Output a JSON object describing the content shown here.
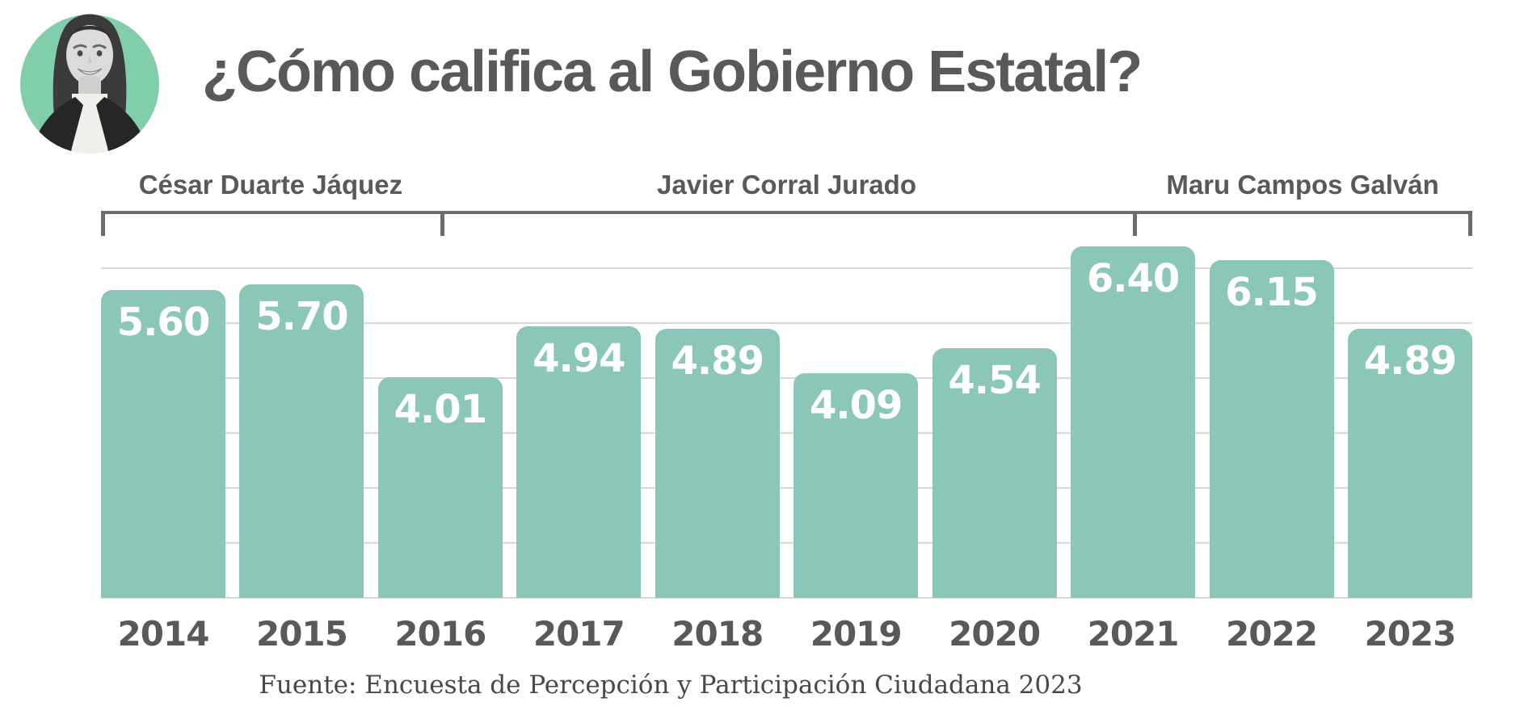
{
  "header": {
    "title": "¿Cómo califica al Gobierno Estatal?",
    "avatar": "woman-portrait-in-teal-circle"
  },
  "chart_data": {
    "type": "bar",
    "title": "¿Cómo califica al Gobierno Estatal?",
    "categories": [
      "2014",
      "2015",
      "2016",
      "2017",
      "2018",
      "2019",
      "2020",
      "2021",
      "2022",
      "2023"
    ],
    "values": [
      5.6,
      5.7,
      4.01,
      4.94,
      4.89,
      4.09,
      4.54,
      6.4,
      6.15,
      4.89
    ],
    "value_label_format": "2-decimals",
    "xlabel": "",
    "ylabel": "",
    "ylim": [
      0,
      6.5
    ],
    "gridlines_at": [
      0,
      1,
      2,
      3,
      4,
      5,
      6
    ],
    "grid": true,
    "legend_position": "none",
    "groups": [
      {
        "label": "César Duarte Jáquez",
        "from_category": "2014",
        "to_category": "2016"
      },
      {
        "label": "Javier Corral Jurado",
        "from_category": "2016",
        "to_category": "2021"
      },
      {
        "label": "Maru Campos Galván",
        "from_category": "2021",
        "to_category": "2023"
      }
    ]
  },
  "source": {
    "text": "Fuente: Encuesta de Percepción y Participación Ciudadana 2023"
  },
  "colors": {
    "bar_fill": "#8BC7B8",
    "avatar_circle": "#82CDAC",
    "heading_text": "#58595B",
    "bracket": "#6A6C70",
    "gridline": "#D8D8D8",
    "bar_value_text": "#FFFFFF",
    "source_text": "#48484A"
  }
}
